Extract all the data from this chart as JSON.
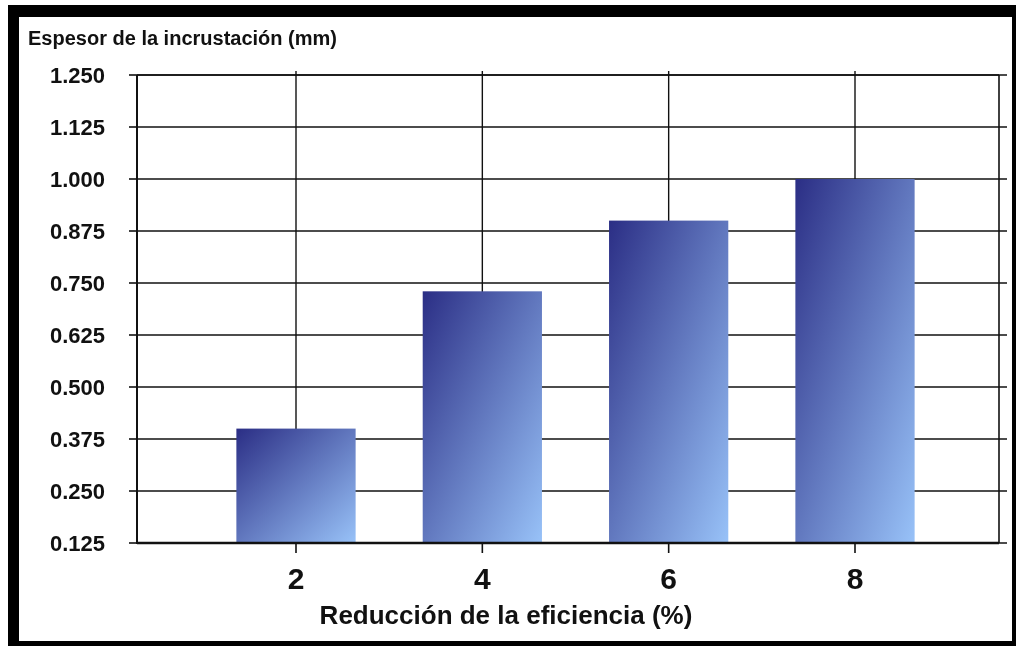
{
  "chart_data": {
    "type": "bar",
    "xlabel": "Reducción de la eficiencia (%)",
    "ylabel": "Espesor de la incrustación (mm)",
    "categories": [
      "2",
      "4",
      "6",
      "8"
    ],
    "values": [
      0.4,
      0.73,
      0.9,
      1.0
    ],
    "color": "#6a8ed6",
    "ylim": [
      0.125,
      1.25
    ],
    "yticks": [
      0.125,
      {
        "value": 0.25,
        "label": "0.250"
      },
      0.375,
      {
        "value": 0.5,
        "label": "0.500"
      },
      0.625,
      {
        "value": 0.75,
        "label": "0.750"
      },
      0.875,
      {
        "value": 1,
        "label": "1.000"
      },
      1.125,
      {
        "value": 1.25,
        "label": "1.250"
      }
    ],
    "grid": true
  }
}
